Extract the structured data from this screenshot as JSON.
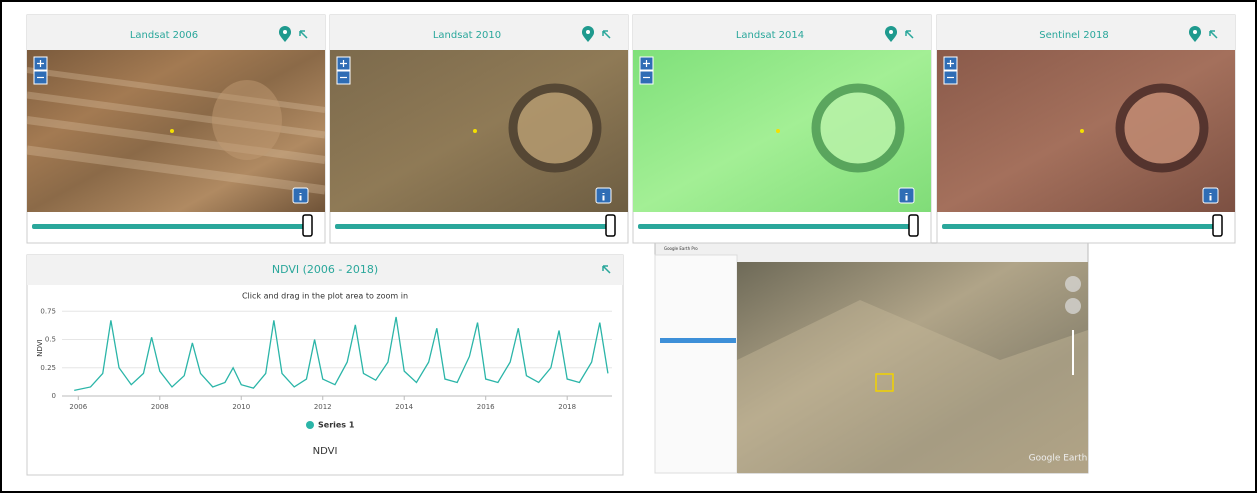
{
  "panels": [
    {
      "title": "Landsat 2006"
    },
    {
      "title": "Landsat 2010"
    },
    {
      "title": "Landsat 2014"
    },
    {
      "title": "Sentinel 2018"
    }
  ],
  "chart_data": {
    "type": "line",
    "title": "NDVI (2006 - 2018)",
    "subtitle": "Click and drag in the plot area to zoom in",
    "y_label": "NDVI",
    "x_label": "NDVI",
    "x": [
      2005.9,
      2006.3,
      2006.6,
      2006.8,
      2007.0,
      2007.3,
      2007.6,
      2007.8,
      2008.0,
      2008.3,
      2008.6,
      2008.8,
      2009.0,
      2009.3,
      2009.6,
      2009.8,
      2010.0,
      2010.3,
      2010.6,
      2010.8,
      2011.0,
      2011.3,
      2011.6,
      2011.8,
      2012.0,
      2012.3,
      2012.6,
      2012.8,
      2013.0,
      2013.3,
      2013.6,
      2013.8,
      2014.0,
      2014.3,
      2014.6,
      2014.8,
      2015.0,
      2015.3,
      2015.6,
      2015.8,
      2016.0,
      2016.3,
      2016.6,
      2016.8,
      2017.0,
      2017.3,
      2017.6,
      2017.8,
      2018.0,
      2018.3,
      2018.6,
      2018.8,
      2019.0
    ],
    "series": [
      {
        "name": "Series 1",
        "color": "#2bb5a8",
        "values": [
          0.05,
          0.08,
          0.2,
          0.67,
          0.25,
          0.1,
          0.2,
          0.52,
          0.22,
          0.08,
          0.18,
          0.47,
          0.2,
          0.08,
          0.12,
          0.25,
          0.1,
          0.07,
          0.2,
          0.67,
          0.2,
          0.08,
          0.15,
          0.5,
          0.15,
          0.1,
          0.3,
          0.63,
          0.2,
          0.14,
          0.3,
          0.7,
          0.22,
          0.12,
          0.3,
          0.6,
          0.15,
          0.12,
          0.35,
          0.65,
          0.15,
          0.12,
          0.3,
          0.6,
          0.18,
          0.12,
          0.25,
          0.58,
          0.15,
          0.12,
          0.3,
          0.65,
          0.2
        ]
      }
    ],
    "xlim": [
      2005.6,
      2019.1
    ],
    "xticks": [
      2006,
      2008,
      2010,
      2012,
      2014,
      2016,
      2018
    ],
    "ylim": [
      0,
      0.85
    ],
    "yticks": [
      0,
      0.25,
      0.5,
      0.75
    ],
    "grid": true
  },
  "earth_view": {
    "window_title": "Google Earth Pro",
    "watermark": "Google Earth"
  }
}
